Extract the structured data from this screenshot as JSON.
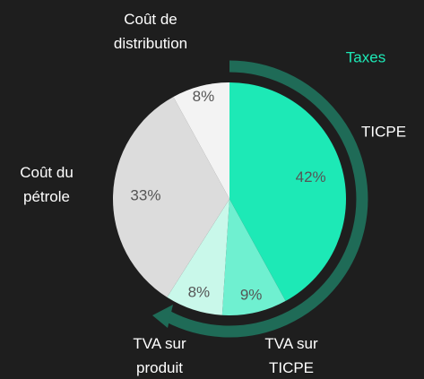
{
  "chart_data": {
    "type": "pie",
    "categories": [
      "TICPE",
      "TVA sur\nTICPE",
      "TVA sur\nproduit",
      "Coût du\npétrole",
      "Coût de\ndistribution"
    ],
    "values": [
      42,
      9,
      8,
      33,
      8
    ],
    "value_labels": [
      "42%",
      "9%",
      "8%",
      "33%",
      "8%"
    ],
    "colors": [
      "#1de9b6",
      "#6ff0d0",
      "#c9f8ea",
      "#dcdcdc",
      "#f3f3f3"
    ],
    "annotations": [
      "Taxes"
    ]
  }
}
